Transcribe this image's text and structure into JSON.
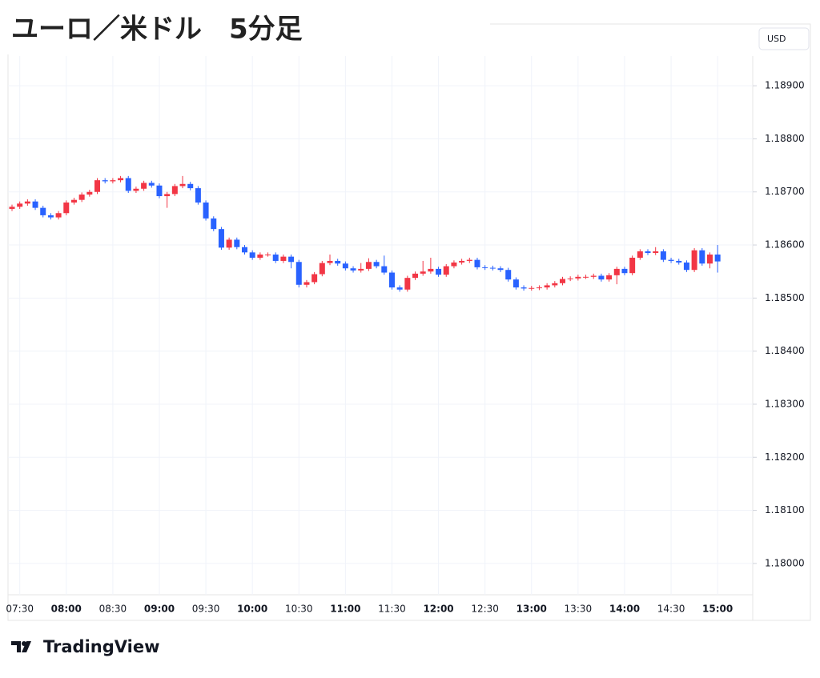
{
  "chart_data": {
    "type": "candlestick",
    "title": "ユーロ／米ドル　5分足",
    "currency": "USD",
    "branding": "TradingView",
    "x": [
      "07:25",
      "07:30",
      "07:35",
      "07:40",
      "07:45",
      "07:50",
      "07:55",
      "08:00",
      "08:05",
      "08:10",
      "08:15",
      "08:20",
      "08:25",
      "08:30",
      "08:35",
      "08:40",
      "08:45",
      "08:50",
      "08:55",
      "09:00",
      "09:05",
      "09:10",
      "09:15",
      "09:20",
      "09:25",
      "09:30",
      "09:35",
      "09:40",
      "09:45",
      "09:50",
      "09:55",
      "10:00",
      "10:05",
      "10:10",
      "10:15",
      "10:20",
      "10:25",
      "10:30",
      "10:35",
      "10:40",
      "10:45",
      "10:50",
      "10:55",
      "11:00",
      "11:05",
      "11:10",
      "11:15",
      "11:20",
      "11:25",
      "11:30",
      "11:35",
      "11:40",
      "11:45",
      "11:50",
      "11:55",
      "12:00",
      "12:05",
      "12:10",
      "12:15",
      "12:20",
      "12:25",
      "12:30",
      "12:35",
      "12:40",
      "12:45",
      "12:50",
      "12:55",
      "13:00",
      "13:05",
      "13:10",
      "13:15",
      "13:20",
      "13:25",
      "13:30",
      "13:35",
      "13:40",
      "13:45",
      "13:50",
      "13:55",
      "14:00",
      "14:05",
      "14:10",
      "14:15",
      "14:20",
      "14:25",
      "14:30",
      "14:35",
      "14:40",
      "14:45",
      "14:50",
      "14:55",
      "15:00"
    ],
    "open": [
      1.18668,
      1.18672,
      1.18678,
      1.18682,
      1.1867,
      1.18656,
      1.18652,
      1.1866,
      1.1868,
      1.18685,
      1.18695,
      1.187,
      1.18722,
      1.1872,
      1.18722,
      1.18726,
      1.18702,
      1.18706,
      1.18717,
      1.18712,
      1.18692,
      1.18696,
      1.18711,
      1.18715,
      1.18707,
      1.1868,
      1.1865,
      1.1863,
      1.18595,
      1.1861,
      1.18596,
      1.18586,
      1.18576,
      1.18582,
      1.18582,
      1.1857,
      1.18578,
      1.18568,
      1.18525,
      1.1853,
      1.18545,
      1.18566,
      1.1857,
      1.18565,
      1.18556,
      1.18552,
      1.18555,
      1.18568,
      1.1856,
      1.18548,
      1.1852,
      1.18516,
      1.18538,
      1.18546,
      1.1855,
      1.18555,
      1.18544,
      1.1856,
      1.18567,
      1.1857,
      1.18572,
      1.18558,
      1.18557,
      1.18556,
      1.18553,
      1.18535,
      1.1852,
      1.18518,
      1.18519,
      1.1852,
      1.18524,
      1.18528,
      1.18536,
      1.18537,
      1.1854,
      1.1854,
      1.18542,
      1.18535,
      1.18543,
      1.18555,
      1.18547,
      1.18576,
      1.18588,
      1.18585,
      1.18588,
      1.18572,
      1.1857,
      1.18567,
      1.18553,
      1.1859,
      1.18565,
      1.18582
    ],
    "high": [
      1.18676,
      1.18682,
      1.18686,
      1.18686,
      1.18674,
      1.1866,
      1.18664,
      1.18684,
      1.18689,
      1.18699,
      1.18704,
      1.18726,
      1.18726,
      1.18726,
      1.1873,
      1.1873,
      1.1871,
      1.18721,
      1.18721,
      1.18716,
      1.187,
      1.18715,
      1.1873,
      1.18719,
      1.18711,
      1.18684,
      1.18654,
      1.18634,
      1.18614,
      1.18614,
      1.186,
      1.1859,
      1.18586,
      1.18586,
      1.18586,
      1.18582,
      1.18582,
      1.18572,
      1.18534,
      1.18549,
      1.1857,
      1.18582,
      1.18574,
      1.18569,
      1.1856,
      1.18566,
      1.18575,
      1.18572,
      1.1858,
      1.18552,
      1.18524,
      1.18542,
      1.1855,
      1.1857,
      1.18576,
      1.18559,
      1.18564,
      1.18571,
      1.18574,
      1.18576,
      1.18576,
      1.18562,
      1.18561,
      1.1856,
      1.18557,
      1.18539,
      1.18524,
      1.18523,
      1.18524,
      1.18528,
      1.18532,
      1.1854,
      1.18541,
      1.18544,
      1.18544,
      1.18546,
      1.18546,
      1.18547,
      1.18559,
      1.18559,
      1.1858,
      1.18592,
      1.18592,
      1.18596,
      1.18592,
      1.18576,
      1.18574,
      1.18571,
      1.18594,
      1.18594,
      1.18586,
      1.186
    ],
    "low": [
      1.18664,
      1.18668,
      1.18674,
      1.18666,
      1.18652,
      1.18648,
      1.18648,
      1.18656,
      1.18676,
      1.18681,
      1.18691,
      1.18696,
      1.18716,
      1.18716,
      1.18718,
      1.18698,
      1.18698,
      1.18702,
      1.18708,
      1.18688,
      1.1867,
      1.18692,
      1.18707,
      1.18703,
      1.18676,
      1.18646,
      1.18626,
      1.18591,
      1.18591,
      1.18592,
      1.18582,
      1.18572,
      1.18572,
      1.18578,
      1.18566,
      1.18566,
      1.18556,
      1.1852,
      1.1852,
      1.18526,
      1.18541,
      1.18562,
      1.18561,
      1.18552,
      1.18548,
      1.18548,
      1.18551,
      1.18556,
      1.18544,
      1.18516,
      1.18512,
      1.18512,
      1.18534,
      1.18542,
      1.18546,
      1.1854,
      1.1854,
      1.18556,
      1.18563,
      1.18566,
      1.18554,
      1.18553,
      1.18552,
      1.18549,
      1.18531,
      1.18516,
      1.18514,
      1.18514,
      1.18515,
      1.18516,
      1.1852,
      1.18524,
      1.18532,
      1.18533,
      1.18536,
      1.18536,
      1.18531,
      1.18531,
      1.18526,
      1.18543,
      1.18543,
      1.18572,
      1.18581,
      1.18581,
      1.18568,
      1.18566,
      1.18563,
      1.18549,
      1.18549,
      1.18561,
      1.18556,
      1.18548
    ],
    "close": [
      1.18672,
      1.18678,
      1.18682,
      1.1867,
      1.18656,
      1.18652,
      1.1866,
      1.1868,
      1.18685,
      1.18695,
      1.187,
      1.18722,
      1.1872,
      1.18722,
      1.18726,
      1.18702,
      1.18706,
      1.18717,
      1.18712,
      1.18692,
      1.18696,
      1.18711,
      1.18715,
      1.18707,
      1.1868,
      1.1865,
      1.1863,
      1.18595,
      1.1861,
      1.18596,
      1.18586,
      1.18576,
      1.18582,
      1.18582,
      1.1857,
      1.18578,
      1.18568,
      1.18525,
      1.1853,
      1.18545,
      1.18566,
      1.1857,
      1.18565,
      1.18556,
      1.18552,
      1.18555,
      1.18568,
      1.1856,
      1.18548,
      1.1852,
      1.18516,
      1.18538,
      1.18546,
      1.1855,
      1.18555,
      1.18544,
      1.1856,
      1.18567,
      1.1857,
      1.18572,
      1.18558,
      1.18557,
      1.18556,
      1.18553,
      1.18535,
      1.1852,
      1.18518,
      1.18519,
      1.1852,
      1.18524,
      1.18528,
      1.18536,
      1.18537,
      1.1854,
      1.1854,
      1.18542,
      1.18535,
      1.18543,
      1.18555,
      1.18547,
      1.18576,
      1.18588,
      1.18585,
      1.18588,
      1.18572,
      1.1857,
      1.18567,
      1.18553,
      1.1859,
      1.18565,
      1.18582,
      1.18569
    ],
    "up_color": "#f23645",
    "down_color": "#2962ff",
    "xticks": [
      "07:30",
      "08:00",
      "08:30",
      "09:00",
      "09:30",
      "10:00",
      "10:30",
      "11:00",
      "11:30",
      "12:00",
      "12:30",
      "13:00",
      "13:30",
      "14:00",
      "14:30",
      "15:00"
    ],
    "ylim": [
      1.17941,
      1.18956
    ],
    "yticks": [
      {
        "value": 1.18,
        "label": "1.18000"
      },
      {
        "value": 1.181,
        "label": "1.18100"
      },
      {
        "value": 1.182,
        "label": "1.18200"
      },
      {
        "value": 1.183,
        "label": "1.18300"
      },
      {
        "value": 1.184,
        "label": "1.18400"
      },
      {
        "value": 1.185,
        "label": "1.18500"
      },
      {
        "value": 1.186,
        "label": "1.18600"
      },
      {
        "value": 1.187,
        "label": "1.18700"
      },
      {
        "value": 1.188,
        "label": "1.18800"
      },
      {
        "value": 1.189,
        "label": "1.18900"
      }
    ],
    "grid": true
  }
}
